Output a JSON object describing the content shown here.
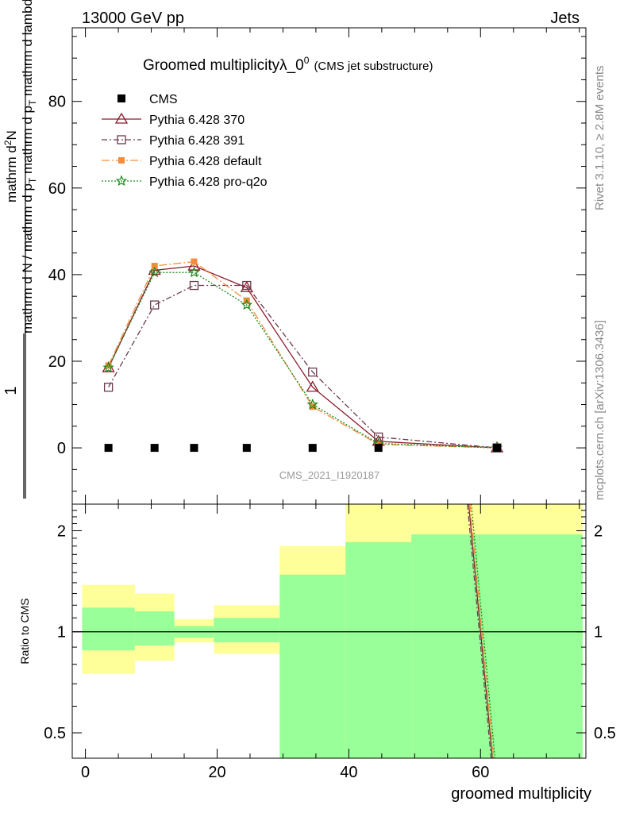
{
  "header": {
    "left": "13000 GeV pp",
    "right": "Jets"
  },
  "side_labels": {
    "rivet": "Rivet 3.1.10, ≥ 2.8M events",
    "mcplots": "mcplots.cern.ch [arXiv:1306.3436]"
  },
  "watermark": "CMS_2021_I1920187",
  "colors": {
    "cms": "#000000",
    "p370": "#8b1a2a",
    "p391": "#6b3a4f",
    "pdefault": "#f58d3a",
    "pq2o": "#1a8a1a",
    "band_inner": "#99ff99",
    "band_outer": "#ffff99"
  },
  "chart_data": [
    {
      "type": "line",
      "title_main": "Groomed multiplicityλ_0",
      "title_sup": "0",
      "title_sub": "(CMS jet substructure)",
      "ylabel_num_one": "1",
      "ylabel_num": "mathrm d",
      "ylabel_num_sup": "2",
      "ylabel_num_tail": "N",
      "ylabel_den_a": "mathrm d N / mathrm d p",
      "ylabel_den_sub": "T",
      "ylabel_den_b": " mathrm d p",
      "ylabel_den_sub2": "T",
      "ylabel_den_c": " mathrm d lambda",
      "xlim": [
        -2,
        76
      ],
      "ylim": [
        -13.0,
        97.0
      ],
      "yticks": [
        0,
        20,
        40,
        60,
        80
      ],
      "legend_position": "top-left",
      "series": [
        {
          "name": "CMS",
          "marker": "square-filled",
          "x": [
            3.5,
            10.5,
            16.5,
            24.5,
            34.5,
            44.5,
            62.5
          ],
          "y": [
            0,
            0,
            0,
            0,
            0,
            0,
            0
          ]
        },
        {
          "name": "Pythia 6.428 370",
          "marker": "triangle-open",
          "line": "solid",
          "x": [
            3.5,
            10.5,
            16.5,
            24.5,
            34.5,
            44.5,
            62.5
          ],
          "y": [
            18.5,
            41.0,
            42.0,
            37.0,
            14.0,
            1.5,
            0.0
          ]
        },
        {
          "name": "Pythia 6.428 391",
          "marker": "square-open",
          "line": "dashdot",
          "x": [
            3.5,
            10.5,
            16.5,
            24.5,
            34.5,
            44.5,
            62.5
          ],
          "y": [
            14.0,
            33.0,
            37.5,
            37.5,
            17.5,
            2.5,
            0.0
          ]
        },
        {
          "name": "Pythia 6.428 default",
          "marker": "square-filled-small",
          "line": "dashdot-long",
          "x": [
            3.5,
            10.5,
            16.5,
            24.5,
            34.5,
            44.5,
            62.5
          ],
          "y": [
            19.0,
            42.0,
            43.0,
            34.0,
            9.5,
            0.8,
            0.0
          ]
        },
        {
          "name": "Pythia 6.428 pro-q2o",
          "marker": "star-open",
          "line": "dotted",
          "x": [
            3.5,
            10.5,
            16.5,
            24.5,
            34.5,
            44.5,
            62.5
          ],
          "y": [
            18.5,
            40.5,
            40.5,
            33.0,
            10.0,
            1.0,
            0.0
          ]
        }
      ]
    },
    {
      "type": "area",
      "ylabel": "Ratio to CMS",
      "xlabel": "groomed multiplicity",
      "xlim": [
        -2,
        76
      ],
      "ylim": [
        0.42,
        2.4
      ],
      "yscale": "log",
      "yticks": [
        0.5,
        1,
        2
      ],
      "xticks": [
        0,
        20,
        40,
        60
      ],
      "reference_line": 1,
      "bins": [
        {
          "x0": -0.5,
          "x1": 7.5,
          "inner": [
            0.88,
            1.18
          ],
          "outer": [
            0.75,
            1.38
          ]
        },
        {
          "x0": 7.5,
          "x1": 13.5,
          "inner": [
            0.91,
            1.15
          ],
          "outer": [
            0.82,
            1.3
          ]
        },
        {
          "x0": 13.5,
          "x1": 19.5,
          "inner": [
            0.96,
            1.04
          ],
          "outer": [
            0.93,
            1.09
          ]
        },
        {
          "x0": 19.5,
          "x1": 29.5,
          "inner": [
            0.93,
            1.1
          ],
          "outer": [
            0.86,
            1.2
          ]
        },
        {
          "x0": 29.5,
          "x1": 39.5,
          "inner": [
            0.3,
            1.48
          ],
          "outer": [
            0.3,
            1.8
          ]
        },
        {
          "x0": 39.5,
          "x1": 49.5,
          "inner": [
            0.3,
            1.85
          ],
          "outer": [
            0.3,
            3.0
          ]
        },
        {
          "x0": 49.5,
          "x1": 75.5,
          "inner": [
            0.3,
            1.95
          ],
          "outer": [
            0.3,
            3.0
          ]
        }
      ],
      "series": [
        {
          "name": "Pythia 6.428 370",
          "line": "solid",
          "x": [
            58.2,
            61.8
          ],
          "y": [
            2.4,
            0.42
          ]
        },
        {
          "name": "Pythia 6.428 391",
          "line": "dashdot",
          "x": [
            58.0,
            61.6
          ],
          "y": [
            2.4,
            0.42
          ]
        },
        {
          "name": "Pythia 6.428 default",
          "line": "dashdot-long",
          "x": [
            58.4,
            62.0
          ],
          "y": [
            2.4,
            0.42
          ]
        },
        {
          "name": "Pythia 6.428 pro-q2o",
          "line": "dotted",
          "x": [
            58.6,
            62.2
          ],
          "y": [
            2.4,
            0.42
          ]
        }
      ]
    }
  ]
}
